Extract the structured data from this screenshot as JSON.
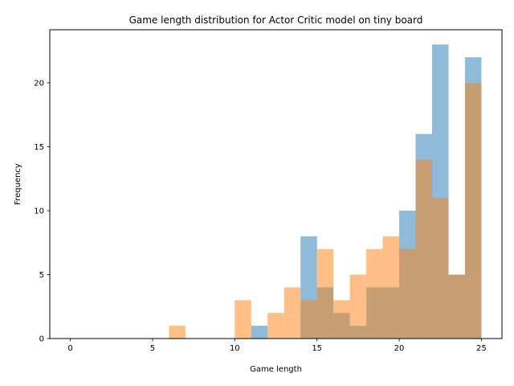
{
  "chart_data": {
    "type": "bar",
    "title": "Game length distribution for Actor Critic model on tiny board",
    "xlabel": "Game length",
    "ylabel": "Frequency",
    "xlim": [
      -1.25,
      26.25
    ],
    "ylim": [
      0,
      24.15
    ],
    "bin_width": 1,
    "xticks": [
      0,
      5,
      10,
      15,
      20,
      25
    ],
    "yticks": [
      0,
      5,
      10,
      15,
      20
    ],
    "grid": false,
    "overlap_color": "#c49c75",
    "series": [
      {
        "color": "#1f77b4",
        "opacity": 0.5,
        "bins": [
          {
            "x0": 11,
            "count": 1
          },
          {
            "x0": 14,
            "count": 8
          },
          {
            "x0": 15,
            "count": 4
          },
          {
            "x0": 16,
            "count": 2
          },
          {
            "x0": 17,
            "count": 1
          },
          {
            "x0": 18,
            "count": 4
          },
          {
            "x0": 19,
            "count": 4
          },
          {
            "x0": 20,
            "count": 10
          },
          {
            "x0": 21,
            "count": 16
          },
          {
            "x0": 22,
            "count": 23
          },
          {
            "x0": 23,
            "count": 5
          },
          {
            "x0": 24,
            "count": 22
          }
        ]
      },
      {
        "color": "#ff7f0e",
        "opacity": 0.5,
        "bins": [
          {
            "x0": 6,
            "count": 1
          },
          {
            "x0": 10,
            "count": 3
          },
          {
            "x0": 12,
            "count": 2
          },
          {
            "x0": 13,
            "count": 4
          },
          {
            "x0": 14,
            "count": 3
          },
          {
            "x0": 15,
            "count": 7
          },
          {
            "x0": 16,
            "count": 3
          },
          {
            "x0": 17,
            "count": 5
          },
          {
            "x0": 18,
            "count": 7
          },
          {
            "x0": 19,
            "count": 8
          },
          {
            "x0": 20,
            "count": 7
          },
          {
            "x0": 21,
            "count": 14
          },
          {
            "x0": 22,
            "count": 11
          },
          {
            "x0": 23,
            "count": 5
          },
          {
            "x0": 24,
            "count": 20
          }
        ]
      }
    ]
  }
}
